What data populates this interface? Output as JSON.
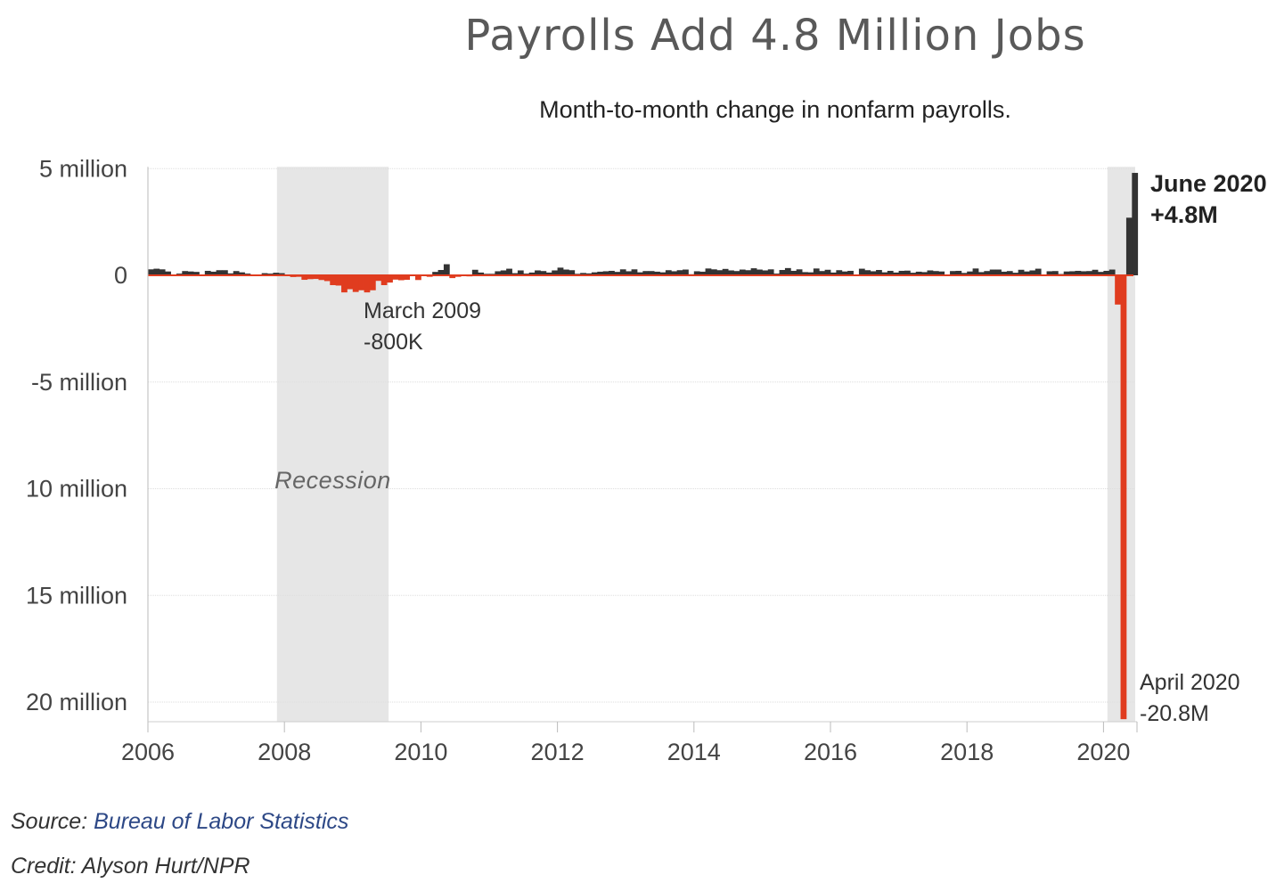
{
  "title": "Payrolls Add 4.8 Million Jobs",
  "subtitle": "Month-to-month change in nonfarm payrolls.",
  "source": {
    "label": "Source:",
    "link_text": "Bureau of Labor Statistics"
  },
  "credit": "Credit: Alyson Hurt/NPR",
  "colors": {
    "positive": "#333333",
    "negative": "#e03c1f",
    "recession": "#e6e6e6",
    "grid": "#dddddd",
    "baseline": "#e03c1f"
  },
  "chart_data": {
    "type": "bar",
    "x_start": "2006-01",
    "x_end": "2020-06",
    "frequency": "monthly",
    "ylabel": "",
    "xlabel": "",
    "ylim": [
      -21.0,
      5.0
    ],
    "y_ticks": [
      {
        "value": 5,
        "label": "5 million"
      },
      {
        "value": 0,
        "label": "0"
      },
      {
        "value": -5,
        "label": "-5 million"
      },
      {
        "value": -10,
        "label": "10 million"
      },
      {
        "value": -15,
        "label": "15 million"
      },
      {
        "value": -20,
        "label": "20 million"
      }
    ],
    "x_ticks": [
      "2006",
      "2008",
      "2010",
      "2012",
      "2014",
      "2016",
      "2018",
      "2020"
    ],
    "grid": true,
    "recessions": [
      {
        "start": "2007-12",
        "end": "2009-06",
        "label": "Recession"
      },
      {
        "start": "2020-02",
        "end": "2020-06",
        "label": ""
      }
    ],
    "series": [
      {
        "name": "",
        "unit": "millions of jobs",
        "values": [
          0.28,
          0.31,
          0.28,
          0.18,
          0.02,
          0.08,
          0.2,
          0.18,
          0.16,
          0.0,
          0.21,
          0.17,
          0.24,
          0.24,
          0.09,
          0.2,
          0.14,
          0.08,
          0.03,
          -0.02,
          0.1,
          0.08,
          0.12,
          0.1,
          0.02,
          -0.08,
          -0.07,
          -0.21,
          -0.18,
          -0.17,
          -0.22,
          -0.27,
          -0.46,
          -0.48,
          -0.8,
          -0.65,
          -0.78,
          -0.7,
          -0.8,
          -0.7,
          -0.26,
          -0.46,
          -0.34,
          -0.2,
          -0.23,
          -0.21,
          -0.02,
          -0.22,
          -0.01,
          -0.07,
          0.16,
          0.25,
          0.52,
          -0.13,
          -0.07,
          -0.04,
          -0.05,
          0.26,
          0.13,
          0.07,
          0.07,
          0.19,
          0.23,
          0.31,
          0.1,
          0.23,
          0.08,
          0.13,
          0.23,
          0.2,
          0.13,
          0.23,
          0.36,
          0.27,
          0.24,
          0.07,
          0.11,
          0.09,
          0.14,
          0.17,
          0.19,
          0.21,
          0.16,
          0.28,
          0.19,
          0.28,
          0.14,
          0.2,
          0.2,
          0.17,
          0.14,
          0.24,
          0.19,
          0.24,
          0.27,
          0.05,
          0.19,
          0.17,
          0.32,
          0.28,
          0.24,
          0.3,
          0.23,
          0.2,
          0.27,
          0.24,
          0.33,
          0.27,
          0.23,
          0.28,
          0.08,
          0.25,
          0.34,
          0.21,
          0.28,
          0.15,
          0.14,
          0.32,
          0.2,
          0.26,
          0.13,
          0.24,
          0.18,
          0.21,
          0.04,
          0.31,
          0.24,
          0.19,
          0.25,
          0.14,
          0.21,
          0.13,
          0.21,
          0.22,
          0.12,
          0.17,
          0.15,
          0.23,
          0.2,
          0.18,
          0.02,
          0.2,
          0.21,
          0.11,
          0.18,
          0.32,
          0.15,
          0.2,
          0.27,
          0.27,
          0.17,
          0.2,
          0.12,
          0.26,
          0.18,
          0.23,
          0.31,
          0.03,
          0.19,
          0.2,
          0.06,
          0.18,
          0.19,
          0.21,
          0.19,
          0.2,
          0.26,
          0.16,
          0.21,
          0.27,
          -1.37,
          -20.8,
          2.7,
          4.8
        ]
      }
    ],
    "annotations": [
      {
        "date": "2009-03",
        "lines": [
          "March 2009",
          "-800K"
        ]
      },
      {
        "date": "2020-04",
        "lines": [
          "April 2020",
          "-20.8M"
        ]
      },
      {
        "date": "2020-06",
        "lines": [
          "June 2020",
          "+4.8M"
        ],
        "bold": true
      }
    ]
  }
}
